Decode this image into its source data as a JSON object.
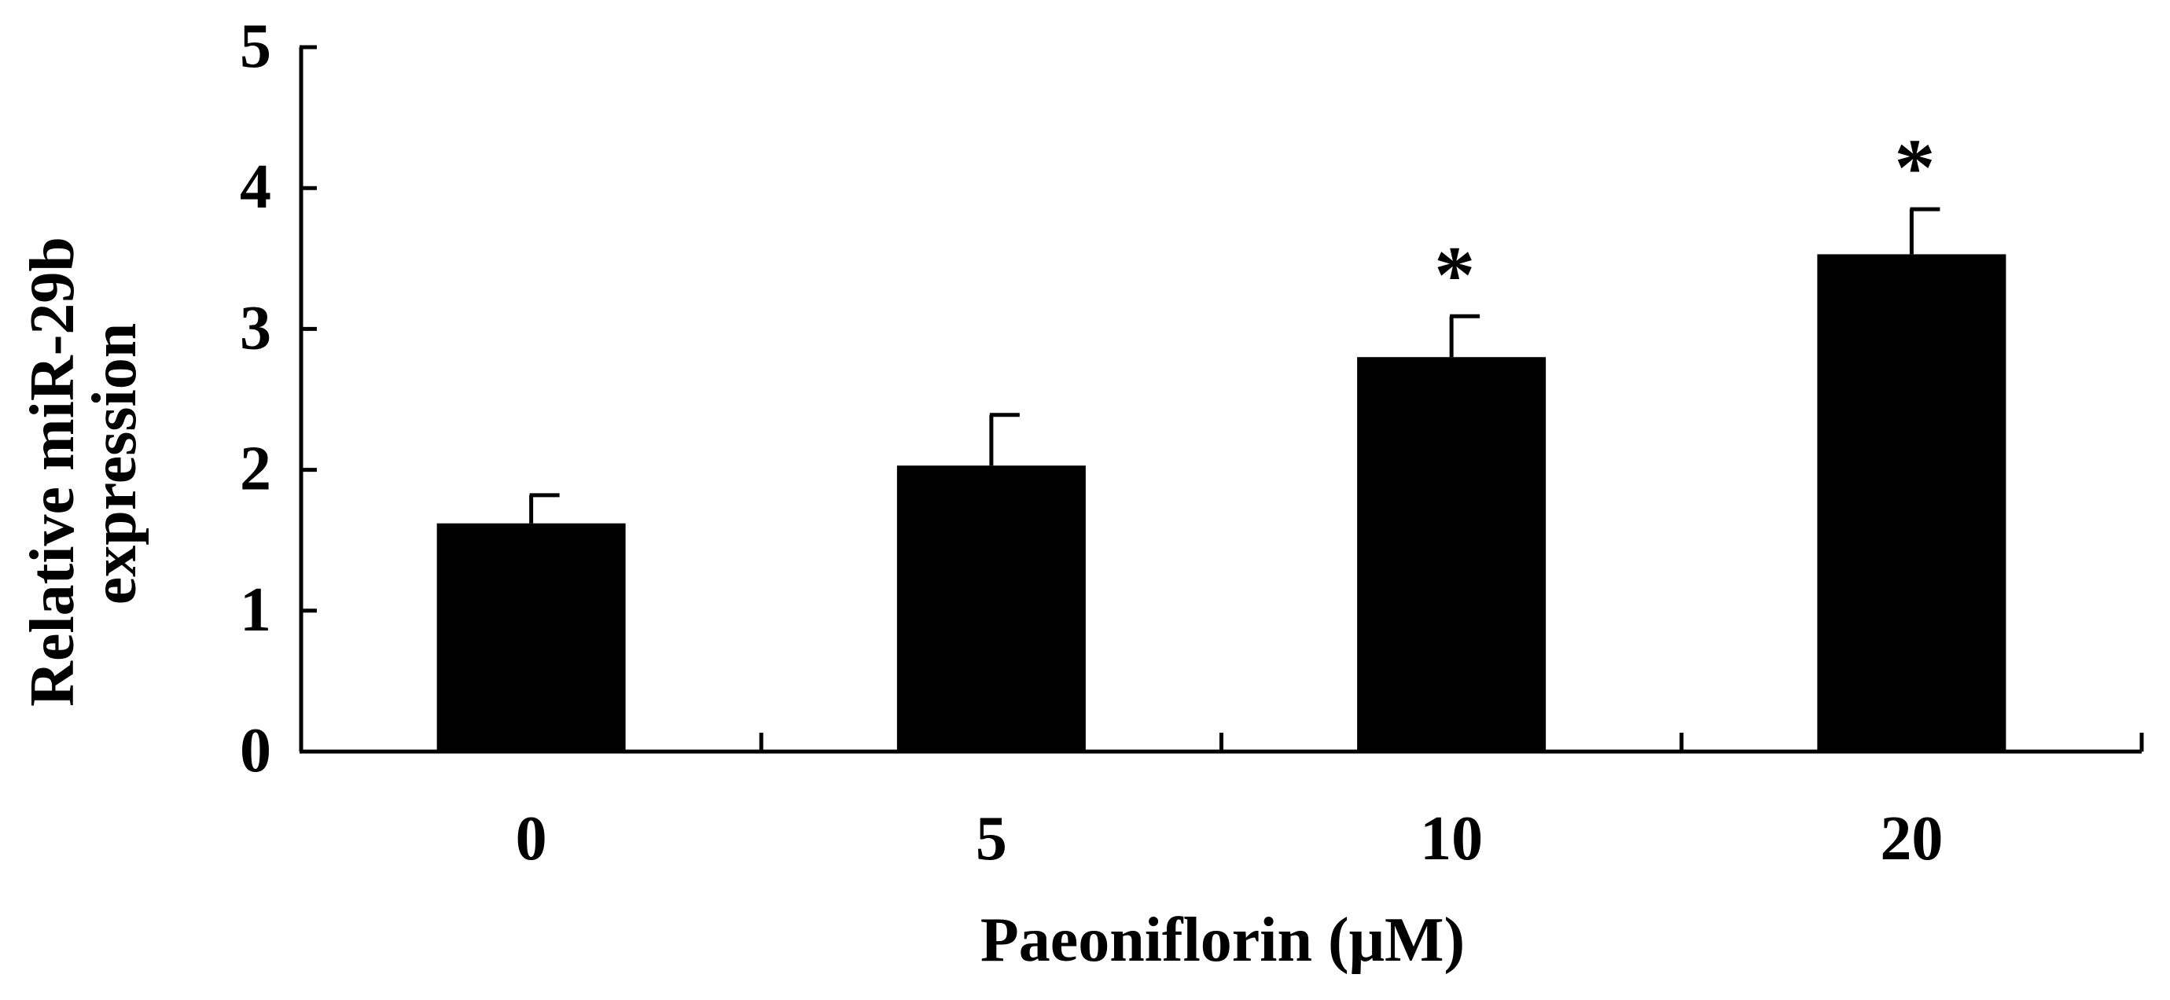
{
  "chart_data": {
    "type": "bar",
    "categories": [
      "0",
      "5",
      "10",
      "20"
    ],
    "values": [
      1.62,
      2.03,
      2.8,
      3.53
    ],
    "error_bars": [
      0.2,
      0.36,
      0.29,
      0.32
    ],
    "significance": [
      "",
      "",
      "*",
      "*"
    ],
    "title": "",
    "xlabel": "Paeoniflorin (μM)",
    "ylabel_lines": [
      "Relative miR-29b",
      "expression"
    ],
    "ylim": [
      0,
      5
    ],
    "yticks": [
      "0",
      "1",
      "2",
      "3",
      "4",
      "5"
    ],
    "grid": false,
    "bar_color": "#000000"
  }
}
